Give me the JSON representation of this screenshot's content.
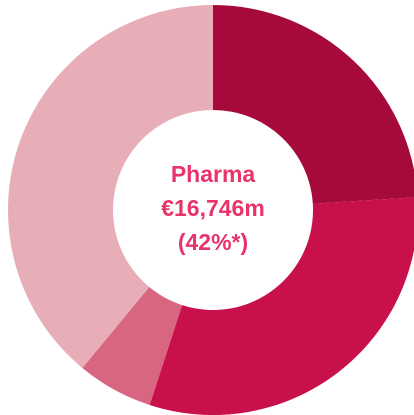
{
  "chart_data": {
    "type": "donut",
    "values": [
      24,
      31,
      6,
      39
    ],
    "colors": [
      "#a50a3a",
      "#c8104a",
      "#d96680",
      "#e8aeb8"
    ],
    "center_text": [
      "Pharma",
      "€16,746m",
      "(42%*)"
    ],
    "center_color": "#e8336b"
  }
}
